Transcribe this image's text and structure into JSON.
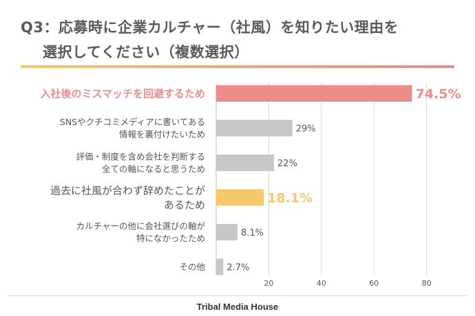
{
  "title": {
    "line1": "Q3：応募時に企業カルチャー（社風）を知りたい理由を",
    "line2": "選択してください（複数選択）"
  },
  "footer": {
    "brand": "Tribal Media House"
  },
  "colors": {
    "highlight_top": "#ee8b8b",
    "highlight_second": "#f5c96a",
    "default_bar": "#c9c6c6",
    "grid": "#d6d6d6"
  },
  "chart_data": {
    "type": "bar",
    "orientation": "horizontal",
    "categories": [
      [
        "入社後のミスマッチを回避するため"
      ],
      [
        "SNSやクチコミメディアに書いてある",
        "情報を裏付けたいため"
      ],
      [
        "評価・制度を含め会社を判断する",
        "全ての軸になると思うため"
      ],
      [
        "過去に社風が合わず辞めたことが",
        "あるため"
      ],
      [
        "カルチャーの他に会社選びの軸が",
        "特になかったため"
      ],
      [
        "その他"
      ]
    ],
    "values": [
      74.5,
      29,
      22,
      18.1,
      8.1,
      2.7
    ],
    "value_labels": [
      "74.5%",
      "29%",
      "22%",
      "18.1%",
      "8.1%",
      "2.7%"
    ],
    "highlight": [
      "top",
      "none",
      "none",
      "second",
      "none",
      "none"
    ],
    "xlim": [
      0,
      90
    ],
    "xticks": [
      20,
      40,
      60,
      80
    ],
    "xtick_labels": [
      "20",
      "40",
      "60",
      "80"
    ],
    "grid": true
  }
}
